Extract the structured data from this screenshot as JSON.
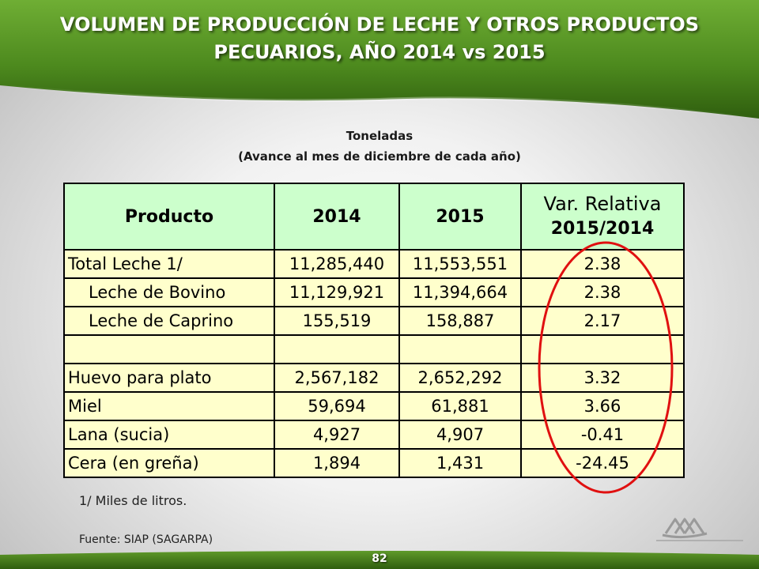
{
  "header": {
    "title_line1": "VOLUMEN DE PRODUCCIÓN DE LECHE Y OTROS PRODUCTOS",
    "title_line2": "PECUARIOS,  AÑO 2014 vs 2015"
  },
  "subtitle": {
    "line1": "Toneladas",
    "line2": "(Avance al mes de diciembre de cada año)"
  },
  "table": {
    "columns": [
      "Producto",
      "2014",
      "2015",
      "Var. Relativa",
      "2015/2014"
    ],
    "rows": [
      {
        "product": "Total Leche 1/",
        "y2014": "11,285,440",
        "y2015": "11,553,551",
        "var": "2.38"
      },
      {
        "product": "Leche de Bovino",
        "y2014": "11,129,921",
        "y2015": "11,394,664",
        "var": "2.38"
      },
      {
        "product": "Leche de Caprino",
        "y2014": "155,519",
        "y2015": "158,887",
        "var": "2.17"
      },
      {
        "product": "",
        "y2014": "",
        "y2015": "",
        "var": ""
      },
      {
        "product": "Huevo para plato",
        "y2014": "2,567,182",
        "y2015": "2,652,292",
        "var": "3.32"
      },
      {
        "product": "Miel",
        "y2014": "59,694",
        "y2015": "61,881",
        "var": "3.66"
      },
      {
        "product": "Lana (sucia)",
        "y2014": "4,927",
        "y2015": "4,907",
        "var": "-0.41"
      },
      {
        "product": "Cera (en greña)",
        "y2014": "1,894",
        "y2015": "1,431",
        "var": "-24.45"
      }
    ]
  },
  "footnote": "1/ Miles de litros.",
  "source": "Fuente: SIAP (SAGARPA)",
  "page_number": "82",
  "colors": {
    "header_green": "#4e8a1f",
    "table_header": "#ccffcc",
    "table_body": "#ffffcc",
    "highlight_ellipse": "#e01010"
  },
  "icons": {
    "logo": "consejo-nacional-agropecuario-logo"
  }
}
